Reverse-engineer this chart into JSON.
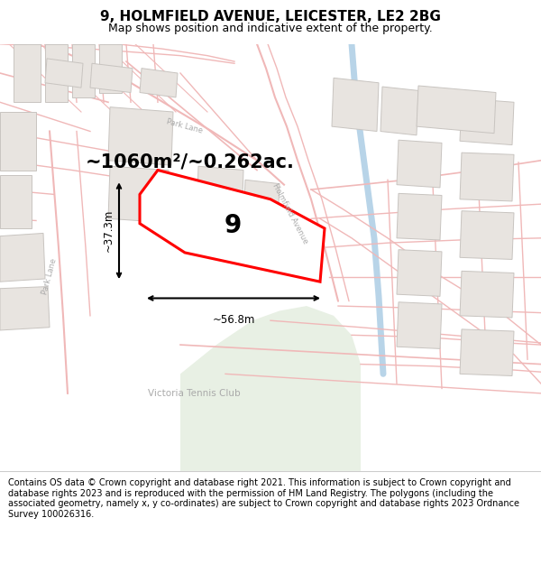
{
  "title": "9, HOLMFIELD AVENUE, LEICESTER, LE2 2BG",
  "subtitle": "Map shows position and indicative extent of the property.",
  "footer": "Contains OS data © Crown copyright and database right 2021. This information is subject to Crown copyright and database rights 2023 and is reproduced with the permission of HM Land Registry. The polygons (including the associated geometry, namely x, y co-ordinates) are subject to Crown copyright and database rights 2023 Ordnance Survey 100026316.",
  "area_label": "~1060m²/~0.262ac.",
  "width_label": "~56.8m",
  "height_label": "~37.3m",
  "number_label": "9",
  "map_bg": "#f7f5f2",
  "road_line_color": "#f0b8b8",
  "building_face_color": "#e8e4e0",
  "building_edge_color": "#c8c4c0",
  "highlight_color": "#ff0000",
  "green_color": "#e8f0e4",
  "blue_color": "#b8d4e8",
  "text_color_dark": "#000000",
  "text_color_street": "#aaaaaa",
  "title_fontsize": 11,
  "subtitle_fontsize": 9,
  "area_fontsize": 18,
  "footer_fontsize": 7
}
